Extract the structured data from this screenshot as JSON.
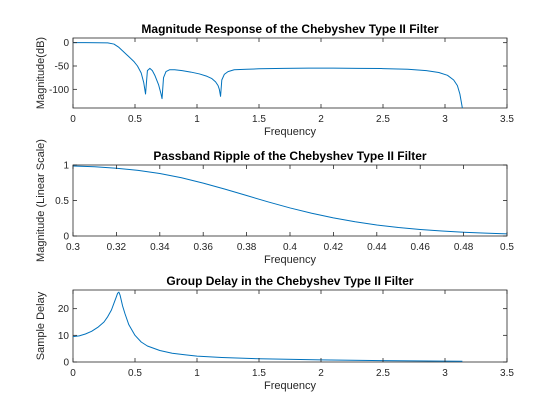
{
  "chart_data": [
    {
      "type": "line",
      "title": "Magnitude Response of the Chebyshev Type II Filter",
      "xlabel": "Frequency",
      "ylabel": "Magnitude(dB)",
      "xlim": [
        0,
        3.5
      ],
      "ylim": [
        -140,
        10
      ],
      "xticks": [
        0,
        0.5,
        1,
        1.5,
        2,
        2.5,
        3,
        3.5
      ],
      "xtick_labels": [
        "0",
        "0.5",
        "1",
        "1.5",
        "2",
        "2.5",
        "3",
        "3.5"
      ],
      "yticks": [
        -100,
        -50,
        0
      ],
      "ytick_labels": [
        "-100",
        "-50",
        "0"
      ],
      "grid": false,
      "color": "#0072BD",
      "series": [
        {
          "x": [
            0,
            0.1,
            0.2,
            0.28,
            0.33,
            0.37,
            0.41,
            0.45,
            0.49,
            0.52,
            0.55,
            0.57,
            0.585,
            0.6,
            0.62,
            0.64,
            0.66,
            0.69,
            0.71,
            0.718,
            0.73,
            0.75,
            0.78,
            0.82,
            0.88,
            0.95,
            1.02,
            1.08,
            1.12,
            1.15,
            1.17,
            1.18,
            1.19,
            1.2,
            1.22,
            1.25,
            1.3,
            1.4,
            1.5,
            1.7,
            1.9,
            2.1,
            2.3,
            2.5,
            2.7,
            2.85,
            2.95,
            3.02,
            3.07,
            3.1,
            3.12,
            3.13,
            3.14
          ],
          "y": [
            0,
            0,
            -0.1,
            -0.5,
            -3,
            -10,
            -20,
            -30,
            -40,
            -50,
            -65,
            -85,
            -110,
            -60,
            -55,
            -60,
            -70,
            -90,
            -110,
            -120,
            -75,
            -62,
            -58,
            -58,
            -60,
            -63,
            -67,
            -72,
            -77,
            -84,
            -92,
            -100,
            -115,
            -80,
            -68,
            -62,
            -58,
            -57,
            -56,
            -55,
            -54.5,
            -54.5,
            -55,
            -55.5,
            -57,
            -60,
            -64,
            -70,
            -80,
            -92,
            -110,
            -125,
            -140
          ]
        }
      ]
    },
    {
      "type": "line",
      "title": "Passband Ripple of the Chebyshev Type II Filter",
      "xlabel": "Frequency",
      "ylabel": "Magnitude (Linear Scale)",
      "xlim": [
        0.3,
        0.5
      ],
      "ylim": [
        0,
        1
      ],
      "xticks": [
        0.3,
        0.32,
        0.34,
        0.36,
        0.38,
        0.4,
        0.42,
        0.44,
        0.46,
        0.48,
        0.5
      ],
      "xtick_labels": [
        "0.3",
        "0.32",
        "0.34",
        "0.36",
        "0.38",
        "0.4",
        "0.42",
        "0.44",
        "0.46",
        "0.48",
        "0.5"
      ],
      "yticks": [
        0,
        0.5,
        1
      ],
      "ytick_labels": [
        "0",
        "0.5",
        "1"
      ],
      "grid": false,
      "color": "#0072BD",
      "series": [
        {
          "x": [
            0.3,
            0.31,
            0.32,
            0.33,
            0.34,
            0.35,
            0.36,
            0.37,
            0.38,
            0.39,
            0.4,
            0.41,
            0.42,
            0.43,
            0.44,
            0.45,
            0.46,
            0.47,
            0.48,
            0.49,
            0.5
          ],
          "y": [
            0.985,
            0.975,
            0.955,
            0.925,
            0.88,
            0.82,
            0.745,
            0.66,
            0.57,
            0.48,
            0.395,
            0.32,
            0.255,
            0.2,
            0.155,
            0.12,
            0.092,
            0.07,
            0.053,
            0.04,
            0.03
          ]
        }
      ]
    },
    {
      "type": "line",
      "title": "Group Delay in the Chebyshev Type II Filter",
      "xlabel": "Frequency",
      "ylabel": "Sample Delay",
      "xlim": [
        0,
        3.5
      ],
      "ylim": [
        0,
        27
      ],
      "xticks": [
        0,
        0.5,
        1,
        1.5,
        2,
        2.5,
        3,
        3.5
      ],
      "xtick_labels": [
        "0",
        "0.5",
        "1",
        "1.5",
        "2",
        "2.5",
        "3",
        "3.5"
      ],
      "yticks": [
        0,
        10,
        20
      ],
      "ytick_labels": [
        "0",
        "10",
        "20"
      ],
      "grid": false,
      "color": "#0072BD",
      "series": [
        {
          "x": [
            0,
            0.05,
            0.1,
            0.15,
            0.2,
            0.25,
            0.28,
            0.31,
            0.33,
            0.35,
            0.36,
            0.37,
            0.38,
            0.39,
            0.4,
            0.42,
            0.45,
            0.5,
            0.55,
            0.6,
            0.7,
            0.8,
            0.9,
            1.0,
            1.2,
            1.5,
            2.0,
            2.5,
            3.0,
            3.14
          ],
          "y": [
            9.5,
            9.8,
            10.5,
            11.5,
            13,
            15,
            17,
            19.5,
            22,
            24.5,
            25.8,
            26.2,
            25,
            23,
            21,
            18,
            14,
            10,
            7.5,
            6,
            4.3,
            3.3,
            2.7,
            2.2,
            1.7,
            1.2,
            0.8,
            0.5,
            0.35,
            0.3
          ]
        }
      ]
    }
  ]
}
